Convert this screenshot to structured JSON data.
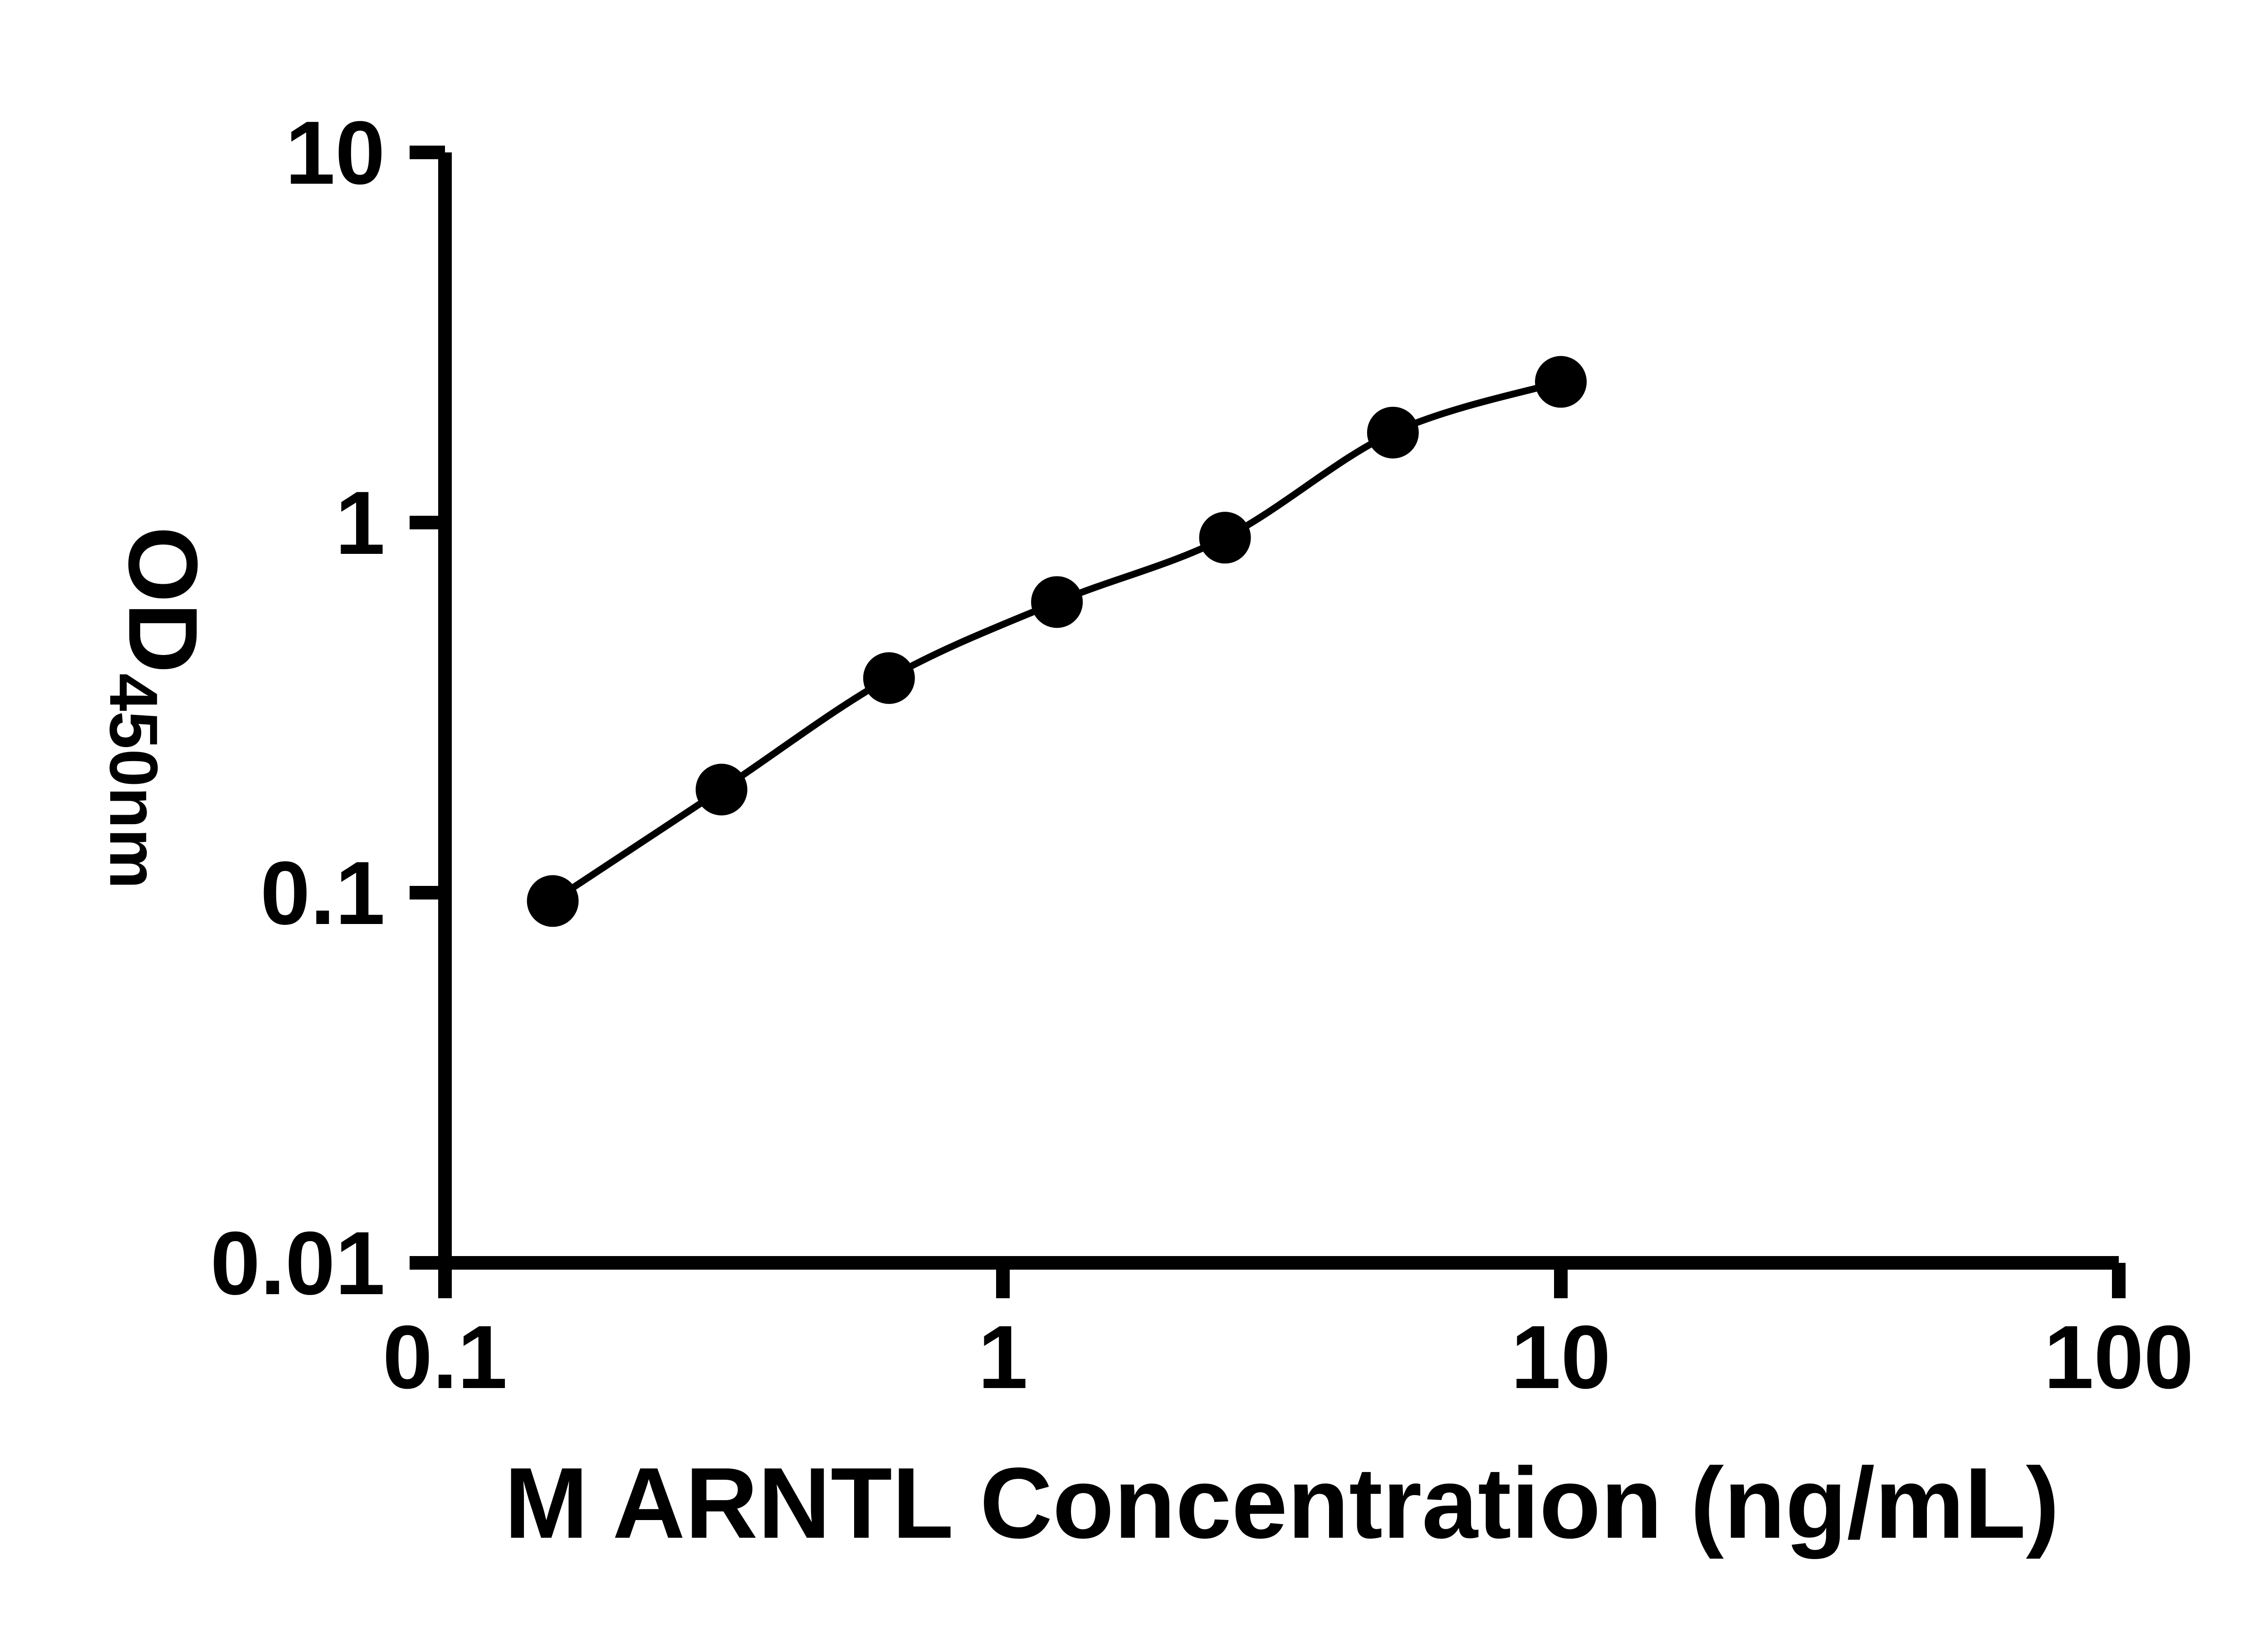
{
  "chart_data": {
    "type": "scatter",
    "subtype": "standard-curve-with-fit-line",
    "title": "",
    "xlabel": "M ARNTL Concentration (ng/mL)",
    "ylabel": "OD450nm",
    "ylabel_main": "OD",
    "ylabel_sub": "450nm",
    "x": [
      0.156,
      0.313,
      0.625,
      1.25,
      2.5,
      5,
      10
    ],
    "y": [
      0.095,
      0.19,
      0.38,
      0.61,
      0.91,
      1.75,
      2.4
    ],
    "xscale": "log",
    "yscale": "log",
    "xlim": [
      0.1,
      100
    ],
    "ylim": [
      0.01,
      10
    ],
    "x_ticks": {
      "values": [
        0.1,
        1,
        10,
        100
      ],
      "labels": [
        "0.1",
        "1",
        "10",
        "100"
      ]
    },
    "y_ticks": {
      "values": [
        0.01,
        0.1,
        1,
        10
      ],
      "labels": [
        "0.01",
        "0.1",
        "1",
        "10"
      ]
    },
    "grid": false,
    "legend": "none",
    "marker_shape": "circle",
    "marker_color": "#000000",
    "line_color": "#000000",
    "axis_color": "#000000",
    "background_color": "#ffffff"
  }
}
